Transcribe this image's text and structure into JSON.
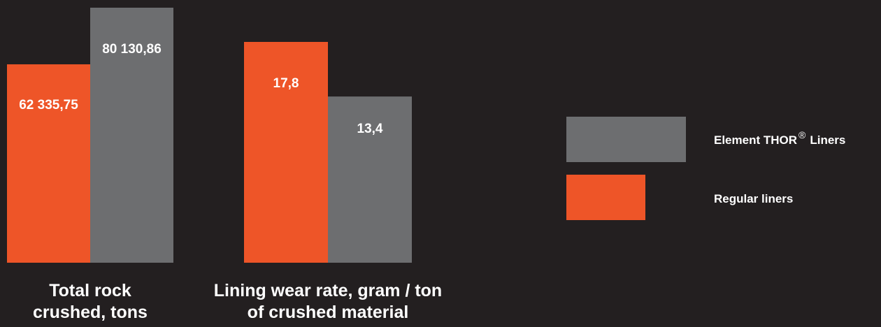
{
  "chart_data": {
    "type": "bar",
    "title": "",
    "colors": {
      "background": "#231f20",
      "regular": "#ee5528",
      "thor": "#6d6e70",
      "text": "#ffffff"
    },
    "legend": {
      "placement": "right",
      "items": [
        {
          "series": "thor",
          "label_main": "Element THOR",
          "label_sup": "®",
          "label_tail": "Liners"
        },
        {
          "series": "regular",
          "label_main": "Regular liners",
          "label_sup": "",
          "label_tail": ""
        }
      ]
    },
    "groups": [
      {
        "category_lines": [
          "Total rock",
          "crushed, tons"
        ],
        "bars": [
          {
            "series": "regular",
            "value": 62335.75,
            "label": "62 335,75"
          },
          {
            "series": "thor",
            "value": 80130.86,
            "label": "80 130,86"
          }
        ]
      },
      {
        "category_lines": [
          "Lining wear rate, gram / ton",
          "of crushed material"
        ],
        "bars": [
          {
            "series": "regular",
            "value": 17.8,
            "label": "17,8"
          },
          {
            "series": "thor",
            "value": 13.4,
            "label": "13,4"
          }
        ]
      }
    ]
  }
}
